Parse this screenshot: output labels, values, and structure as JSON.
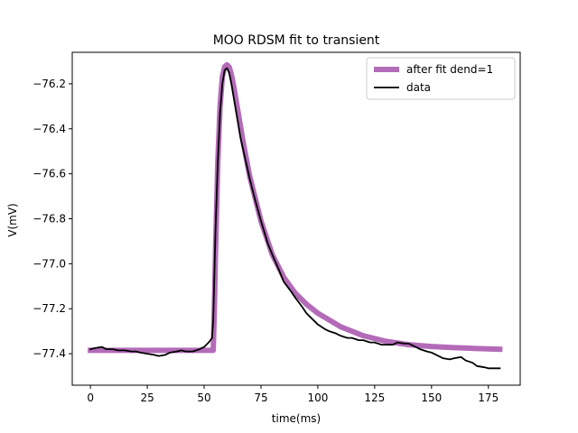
{
  "chart_data": {
    "type": "line",
    "title": "MOO RDSM fit to transient",
    "xlabel": "time(ms)",
    "ylabel": "V(mV)",
    "xlim": [
      -8,
      189
    ],
    "ylim": [
      -77.54,
      -76.06
    ],
    "x_ticks": [
      0,
      25,
      50,
      75,
      100,
      125,
      150,
      175
    ],
    "x_tick_labels": [
      "0",
      "25",
      "50",
      "75",
      "100",
      "125",
      "150",
      "175"
    ],
    "y_ticks": [
      -77.4,
      -77.2,
      -77.0,
      -76.8,
      -76.6,
      -76.4,
      -76.2
    ],
    "y_tick_labels": [
      "−77.4",
      "−77.2",
      "−77.0",
      "−76.8",
      "−76.6",
      "−76.4",
      "−76.2"
    ],
    "grid": false,
    "legend_position": "upper right",
    "series": [
      {
        "name": "after fit dend=1",
        "color": "#b36bb8",
        "x": [
          0,
          10,
          20,
          30,
          40,
          50,
          53,
          54,
          54.5,
          55,
          56,
          57,
          58,
          59,
          60,
          61,
          62,
          63,
          65,
          67,
          70,
          75,
          80,
          85,
          90,
          95,
          100,
          110,
          120,
          130,
          140,
          150,
          160,
          170,
          180
        ],
        "y": [
          -77.385,
          -77.385,
          -77.385,
          -77.385,
          -77.385,
          -77.385,
          -77.385,
          -77.385,
          -77.2,
          -76.95,
          -76.55,
          -76.3,
          -76.17,
          -76.125,
          -76.115,
          -76.125,
          -76.16,
          -76.21,
          -76.33,
          -76.45,
          -76.61,
          -76.81,
          -76.96,
          -77.06,
          -77.13,
          -77.18,
          -77.22,
          -77.28,
          -77.32,
          -77.345,
          -77.36,
          -77.368,
          -77.373,
          -77.377,
          -77.38
        ]
      },
      {
        "name": "data",
        "color": "#000000",
        "x": [
          0,
          2,
          5,
          7,
          10,
          12,
          15,
          18,
          20,
          22,
          25,
          28,
          30,
          33,
          35,
          38,
          40,
          42,
          45,
          48,
          50,
          52,
          53.5,
          54,
          54.5,
          55,
          56,
          57,
          58,
          59,
          60,
          61,
          62,
          64,
          66,
          68,
          70,
          72,
          75,
          78,
          80,
          83,
          85,
          88,
          90,
          93,
          95,
          98,
          100,
          103,
          105,
          108,
          110,
          113,
          115,
          118,
          120,
          123,
          125,
          128,
          130,
          133,
          135,
          138,
          140,
          143,
          145,
          148,
          150,
          153,
          155,
          158,
          160,
          163,
          165,
          168,
          170,
          173,
          175,
          178,
          180
        ],
        "y": [
          -77.38,
          -77.375,
          -77.37,
          -77.38,
          -77.38,
          -77.385,
          -77.385,
          -77.39,
          -77.39,
          -77.395,
          -77.4,
          -77.405,
          -77.41,
          -77.405,
          -77.395,
          -77.39,
          -77.385,
          -77.39,
          -77.39,
          -77.38,
          -77.37,
          -77.35,
          -77.33,
          -77.25,
          -77.05,
          -76.85,
          -76.55,
          -76.33,
          -76.2,
          -76.14,
          -76.13,
          -76.15,
          -76.2,
          -76.32,
          -76.44,
          -76.53,
          -76.62,
          -76.7,
          -76.81,
          -76.91,
          -76.96,
          -77.03,
          -77.08,
          -77.12,
          -77.15,
          -77.19,
          -77.22,
          -77.25,
          -77.27,
          -77.29,
          -77.3,
          -77.31,
          -77.32,
          -77.33,
          -77.33,
          -77.34,
          -77.34,
          -77.35,
          -77.35,
          -77.36,
          -77.36,
          -77.36,
          -77.35,
          -77.355,
          -77.355,
          -77.37,
          -77.38,
          -77.39,
          -77.395,
          -77.41,
          -77.42,
          -77.425,
          -77.42,
          -77.415,
          -77.43,
          -77.44,
          -77.455,
          -77.46,
          -77.465,
          -77.465,
          -77.465
        ]
      }
    ]
  }
}
